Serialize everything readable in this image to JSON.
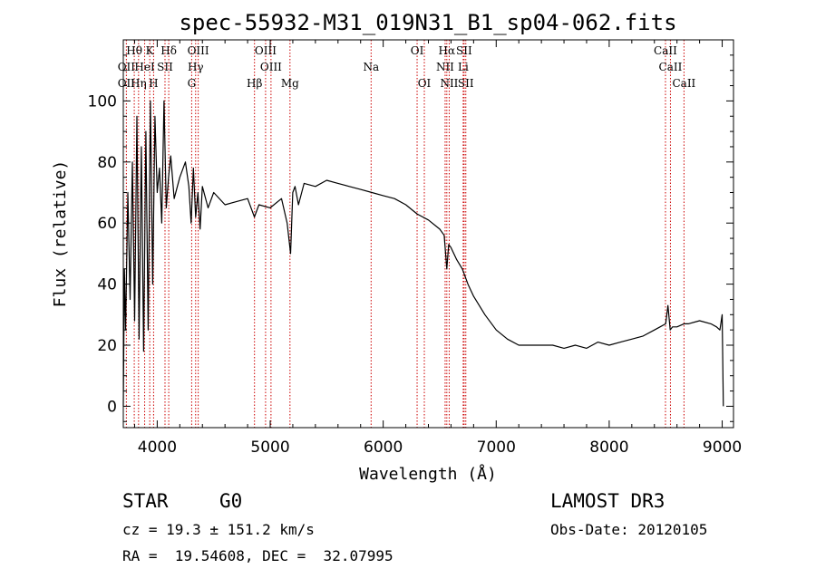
{
  "chart_data": {
    "type": "line",
    "title": "spec-55932-M31_019N31_B1_sp04-062.fits",
    "xlabel": "Wavelength (Å)",
    "ylabel": "Flux (relative)",
    "xlim": [
      3700,
      9100
    ],
    "ylim": [
      -7,
      120
    ],
    "xticks": [
      4000,
      5000,
      6000,
      7000,
      8000,
      9000
    ],
    "yticks": [
      0,
      20,
      40,
      60,
      80,
      100
    ],
    "series": [
      {
        "name": "flux",
        "x": [
          3700,
          3710,
          3720,
          3740,
          3760,
          3780,
          3800,
          3820,
          3840,
          3860,
          3880,
          3900,
          3920,
          3940,
          3960,
          3980,
          4000,
          4020,
          4040,
          4060,
          4080,
          4100,
          4120,
          4150,
          4200,
          4250,
          4280,
          4300,
          4320,
          4340,
          4360,
          4380,
          4400,
          4450,
          4500,
          4600,
          4700,
          4800,
          4860,
          4900,
          5000,
          5100,
          5150,
          5180,
          5200,
          5220,
          5250,
          5300,
          5400,
          5500,
          5600,
          5700,
          5800,
          5900,
          6000,
          6100,
          6200,
          6300,
          6400,
          6500,
          6540,
          6563,
          6580,
          6600,
          6650,
          6700,
          6750,
          6800,
          6900,
          7000,
          7100,
          7200,
          7300,
          7400,
          7500,
          7600,
          7700,
          7800,
          7900,
          8000,
          8100,
          8200,
          8300,
          8400,
          8450,
          8500,
          8520,
          8540,
          8560,
          8600,
          8662,
          8700,
          8800,
          8900,
          8950,
          8980,
          9000,
          9010
        ],
        "y": [
          0,
          45,
          25,
          70,
          35,
          80,
          28,
          95,
          22,
          85,
          18,
          90,
          25,
          100,
          40,
          95,
          70,
          78,
          60,
          100,
          65,
          75,
          82,
          68,
          75,
          80,
          72,
          60,
          78,
          62,
          70,
          58,
          72,
          65,
          70,
          66,
          67,
          68,
          62,
          66,
          65,
          68,
          60,
          50,
          70,
          72,
          66,
          73,
          72,
          74,
          73,
          72,
          71,
          70,
          69,
          68,
          66,
          63,
          61,
          58,
          56,
          45,
          53,
          52,
          48,
          45,
          40,
          36,
          30,
          25,
          22,
          20,
          20,
          20,
          20,
          19,
          20,
          19,
          21,
          20,
          21,
          22,
          23,
          25,
          26,
          27,
          33,
          25,
          26,
          26,
          27,
          27,
          28,
          27,
          26,
          25,
          30,
          0
        ]
      }
    ],
    "line_labels": [
      {
        "text": "Hθ",
        "x": 3797,
        "row": 1
      },
      {
        "text": "OII",
        "x": 3727,
        "row": 2
      },
      {
        "text": "OII",
        "x": 3727,
        "row": 3
      },
      {
        "text": "K",
        "x": 3934,
        "row": 1
      },
      {
        "text": "HeI",
        "x": 3889,
        "row": 2
      },
      {
        "text": "Hη",
        "x": 3835,
        "row": 3
      },
      {
        "text": "SII",
        "x": 4069,
        "row": 2
      },
      {
        "text": "H",
        "x": 3968,
        "row": 3
      },
      {
        "text": "Hδ",
        "x": 4102,
        "row": 1
      },
      {
        "text": "OIII",
        "x": 4363,
        "row": 1
      },
      {
        "text": "Hγ",
        "x": 4340,
        "row": 2
      },
      {
        "text": "G",
        "x": 4305,
        "row": 3
      },
      {
        "text": "OIII",
        "x": 4959,
        "row": 1
      },
      {
        "text": "OIII",
        "x": 5007,
        "row": 2
      },
      {
        "text": "Hβ",
        "x": 4861,
        "row": 3
      },
      {
        "text": "Mg",
        "x": 5175,
        "row": 3
      },
      {
        "text": "Na",
        "x": 5893,
        "row": 2
      },
      {
        "text": "OI",
        "x": 6300,
        "row": 1
      },
      {
        "text": "OI",
        "x": 6364,
        "row": 3
      },
      {
        "text": "Hα",
        "x": 6563,
        "row": 1
      },
      {
        "text": "SII",
        "x": 6716,
        "row": 1
      },
      {
        "text": "NII",
        "x": 6548,
        "row": 2
      },
      {
        "text": "Li",
        "x": 6708,
        "row": 2
      },
      {
        "text": "NII",
        "x": 6584,
        "row": 3
      },
      {
        "text": "SII",
        "x": 6731,
        "row": 3
      },
      {
        "text": "CaII",
        "x": 8498,
        "row": 1
      },
      {
        "text": "CaII",
        "x": 8542,
        "row": 2
      },
      {
        "text": "CaII",
        "x": 8662,
        "row": 3
      }
    ],
    "line_markers": [
      3727,
      3797,
      3835,
      3889,
      3934,
      3968,
      4069,
      4102,
      4305,
      4340,
      4363,
      4861,
      4959,
      5007,
      5175,
      5893,
      6300,
      6364,
      6548,
      6563,
      6584,
      6708,
      6716,
      6731,
      8498,
      8542,
      8662
    ],
    "marker_color": "#cc0000"
  },
  "info": {
    "object_class": "STAR",
    "subclass": "G0",
    "survey": "LAMOST DR3",
    "redshift": "cz = 19.3 ± 151.2 km/s",
    "obs_date": "Obs-Date: 20120105",
    "coords": "RA =  19.54608, DEC =  32.07995"
  }
}
